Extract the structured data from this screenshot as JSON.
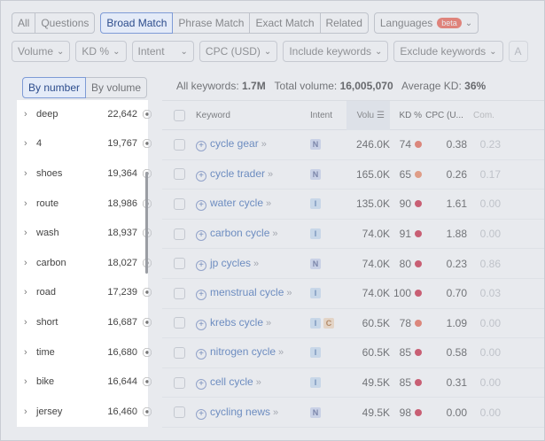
{
  "tabs": [
    {
      "label": "All",
      "active": false
    },
    {
      "label": "Questions",
      "active": false
    },
    {
      "label": "Broad Match",
      "active": true
    },
    {
      "label": "Phrase Match",
      "active": false
    },
    {
      "label": "Exact Match",
      "active": false
    },
    {
      "label": "Related",
      "active": false
    }
  ],
  "languages": {
    "label": "Languages",
    "badge": "beta"
  },
  "filters": {
    "volume": "Volume",
    "kd": "KD %",
    "intent": "Intent",
    "cpc": "CPC (USD)",
    "include": "Include keywords",
    "exclude": "Exclude keywords",
    "extra": "A"
  },
  "left_panel": {
    "by_number": "By number",
    "by_volume": "By volume",
    "groups": [
      {
        "name": "deep",
        "count": "22,642"
      },
      {
        "name": "4",
        "count": "19,767"
      },
      {
        "name": "shoes",
        "count": "19,364"
      },
      {
        "name": "route",
        "count": "18,986"
      },
      {
        "name": "wash",
        "count": "18,937"
      },
      {
        "name": "carbon",
        "count": "18,027"
      },
      {
        "name": "road",
        "count": "17,239"
      },
      {
        "name": "short",
        "count": "16,687"
      },
      {
        "name": "time",
        "count": "16,680"
      },
      {
        "name": "bike",
        "count": "16,644"
      },
      {
        "name": "jersey",
        "count": "16,460"
      }
    ]
  },
  "summary": {
    "all_label": "All keywords:",
    "all_value": "1.7M",
    "vol_label": "Total volume:",
    "vol_value": "16,005,070",
    "kd_label": "Average KD:",
    "kd_value": "36%"
  },
  "table": {
    "headers": {
      "keyword": "Keyword",
      "intent": "Intent",
      "volume": "Volu",
      "kd": "KD %",
      "cpc": "CPC (U...",
      "com": "Com."
    },
    "rows": [
      {
        "keyword": "cycle gear",
        "intent": [
          "N"
        ],
        "volume": "246.0K",
        "kd": "74",
        "kd_color": "#e8553c",
        "cpc": "0.38",
        "com": "0.23"
      },
      {
        "keyword": "cycle trader",
        "intent": [
          "N"
        ],
        "volume": "165.0K",
        "kd": "65",
        "kd_color": "#f07a4f",
        "cpc": "0.26",
        "com": "0.17"
      },
      {
        "keyword": "water cycle",
        "intent": [
          "I"
        ],
        "volume": "135.0K",
        "kd": "90",
        "kd_color": "#c8102e",
        "cpc": "1.61",
        "com": "0.00"
      },
      {
        "keyword": "carbon cycle",
        "intent": [
          "I"
        ],
        "volume": "74.0K",
        "kd": "91",
        "kd_color": "#c8102e",
        "cpc": "1.88",
        "com": "0.00"
      },
      {
        "keyword": "jp cycles",
        "intent": [
          "N"
        ],
        "volume": "74.0K",
        "kd": "80",
        "kd_color": "#c8102e",
        "cpc": "0.23",
        "com": "0.86"
      },
      {
        "keyword": "menstrual cycle",
        "intent": [
          "I"
        ],
        "volume": "74.0K",
        "kd": "100",
        "kd_color": "#c8102e",
        "cpc": "0.70",
        "com": "0.03"
      },
      {
        "keyword": "krebs cycle",
        "intent": [
          "I",
          "C"
        ],
        "volume": "60.5K",
        "kd": "78",
        "kd_color": "#e8553c",
        "cpc": "1.09",
        "com": "0.00"
      },
      {
        "keyword": "nitrogen cycle",
        "intent": [
          "I"
        ],
        "volume": "60.5K",
        "kd": "85",
        "kd_color": "#c8102e",
        "cpc": "0.58",
        "com": "0.00"
      },
      {
        "keyword": "cell cycle",
        "intent": [
          "I"
        ],
        "volume": "49.5K",
        "kd": "85",
        "kd_color": "#c8102e",
        "cpc": "0.31",
        "com": "0.00"
      },
      {
        "keyword": "cycling news",
        "intent": [
          "N"
        ],
        "volume": "49.5K",
        "kd": "98",
        "kd_color": "#c8102e",
        "cpc": "0.00",
        "com": "0.00"
      }
    ]
  },
  "colors": {
    "accent": "#2a5db0",
    "active_bg": "#e4ebf8",
    "overlay": "rgba(210,214,222,0.45)"
  }
}
